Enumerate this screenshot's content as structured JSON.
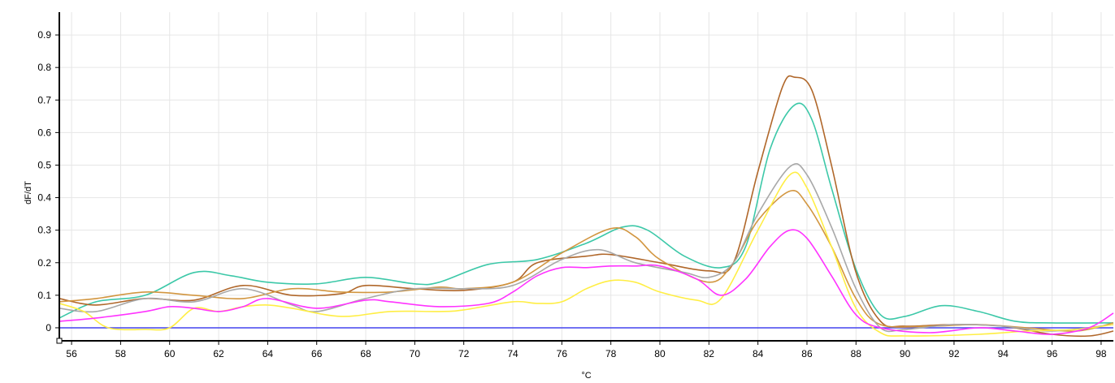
{
  "chart_data": {
    "type": "line",
    "xlabel": "°C",
    "ylabel": "dF/dT",
    "xlim": [
      55.5,
      98.5
    ],
    "ylim": [
      -0.04,
      0.97
    ],
    "xticks": [
      56,
      58,
      60,
      62,
      64,
      66,
      68,
      70,
      72,
      74,
      76,
      78,
      80,
      82,
      84,
      86,
      88,
      90,
      92,
      94,
      96,
      98
    ],
    "yticks": [
      0,
      0.1,
      0.2,
      0.3,
      0.4,
      0.5,
      0.6,
      0.7,
      0.8,
      0.9
    ],
    "grid": true,
    "baseline": {
      "value": 0,
      "color": "#4444ee"
    },
    "series": [
      {
        "color": "#3cc8a8",
        "points": [
          [
            55.5,
            0.03
          ],
          [
            57,
            0.08
          ],
          [
            59,
            0.1
          ],
          [
            61,
            0.17
          ],
          [
            62.5,
            0.16
          ],
          [
            64,
            0.14
          ],
          [
            66,
            0.135
          ],
          [
            68,
            0.155
          ],
          [
            70,
            0.135
          ],
          [
            71,
            0.14
          ],
          [
            73,
            0.195
          ],
          [
            75,
            0.21
          ],
          [
            77,
            0.26
          ],
          [
            78.5,
            0.31
          ],
          [
            79.5,
            0.3
          ],
          [
            81,
            0.22
          ],
          [
            82.5,
            0.185
          ],
          [
            83.5,
            0.25
          ],
          [
            84.5,
            0.55
          ],
          [
            85.5,
            0.685
          ],
          [
            86.2,
            0.64
          ],
          [
            87,
            0.43
          ],
          [
            88,
            0.18
          ],
          [
            89,
            0.04
          ],
          [
            90,
            0.035
          ],
          [
            91.5,
            0.068
          ],
          [
            93,
            0.05
          ],
          [
            94.5,
            0.02
          ],
          [
            96,
            0.015
          ],
          [
            98.5,
            0.015
          ]
        ]
      },
      {
        "color": "#b0672a",
        "points": [
          [
            55.5,
            0.09
          ],
          [
            57,
            0.07
          ],
          [
            59,
            0.09
          ],
          [
            61,
            0.085
          ],
          [
            63,
            0.13
          ],
          [
            65,
            0.1
          ],
          [
            67,
            0.105
          ],
          [
            68,
            0.13
          ],
          [
            70,
            0.12
          ],
          [
            72,
            0.115
          ],
          [
            74,
            0.14
          ],
          [
            75,
            0.2
          ],
          [
            77,
            0.22
          ],
          [
            78,
            0.225
          ],
          [
            80,
            0.2
          ],
          [
            82,
            0.175
          ],
          [
            83,
            0.2
          ],
          [
            84,
            0.48
          ],
          [
            85,
            0.74
          ],
          [
            85.5,
            0.77
          ],
          [
            86.2,
            0.73
          ],
          [
            87,
            0.5
          ],
          [
            88,
            0.17
          ],
          [
            89,
            0.02
          ],
          [
            90,
            0.005
          ],
          [
            92,
            0.01
          ],
          [
            94,
            0.005
          ],
          [
            96,
            -0.02
          ],
          [
            97.5,
            -0.025
          ],
          [
            98.5,
            -0.01
          ]
        ]
      },
      {
        "color": "#d29640",
        "points": [
          [
            55.5,
            0.08
          ],
          [
            57,
            0.09
          ],
          [
            59,
            0.11
          ],
          [
            61,
            0.1
          ],
          [
            63,
            0.09
          ],
          [
            65,
            0.12
          ],
          [
            67,
            0.11
          ],
          [
            69,
            0.11
          ],
          [
            71,
            0.125
          ],
          [
            72,
            0.12
          ],
          [
            74,
            0.14
          ],
          [
            76,
            0.23
          ],
          [
            78,
            0.305
          ],
          [
            79,
            0.28
          ],
          [
            80,
            0.21
          ],
          [
            82,
            0.14
          ],
          [
            83,
            0.2
          ],
          [
            84,
            0.33
          ],
          [
            85.3,
            0.42
          ],
          [
            86,
            0.38
          ],
          [
            87,
            0.25
          ],
          [
            88,
            0.09
          ],
          [
            89,
            0.01
          ],
          [
            91,
            0.005
          ],
          [
            93,
            0.01
          ],
          [
            95,
            0.0
          ],
          [
            97,
            -0.01
          ],
          [
            98.5,
            0.015
          ]
        ]
      },
      {
        "color": "#a8a8a8",
        "points": [
          [
            55.5,
            0.06
          ],
          [
            57,
            0.05
          ],
          [
            59,
            0.09
          ],
          [
            61,
            0.08
          ],
          [
            63,
            0.12
          ],
          [
            65,
            0.07
          ],
          [
            66,
            0.05
          ],
          [
            68,
            0.09
          ],
          [
            70,
            0.12
          ],
          [
            72,
            0.12
          ],
          [
            74,
            0.13
          ],
          [
            76,
            0.21
          ],
          [
            77.5,
            0.24
          ],
          [
            79,
            0.2
          ],
          [
            81,
            0.17
          ],
          [
            82,
            0.155
          ],
          [
            83,
            0.2
          ],
          [
            84,
            0.35
          ],
          [
            85.3,
            0.495
          ],
          [
            86,
            0.47
          ],
          [
            87,
            0.31
          ],
          [
            88,
            0.12
          ],
          [
            89,
            0.0
          ],
          [
            90,
            -0.005
          ],
          [
            92,
            0.01
          ],
          [
            94,
            0.005
          ],
          [
            96,
            -0.01
          ],
          [
            98.5,
            0.01
          ]
        ]
      },
      {
        "color": "#ffee44",
        "points": [
          [
            55.5,
            0.075
          ],
          [
            56.5,
            0.05
          ],
          [
            57.5,
            0.0
          ],
          [
            59,
            -0.005
          ],
          [
            60,
            0.0
          ],
          [
            61,
            0.06
          ],
          [
            62,
            0.05
          ],
          [
            63,
            0.065
          ],
          [
            64,
            0.07
          ],
          [
            65,
            0.06
          ],
          [
            67,
            0.035
          ],
          [
            69,
            0.05
          ],
          [
            71,
            0.05
          ],
          [
            72,
            0.055
          ],
          [
            74,
            0.08
          ],
          [
            75,
            0.075
          ],
          [
            76,
            0.08
          ],
          [
            77,
            0.12
          ],
          [
            78,
            0.145
          ],
          [
            79,
            0.14
          ],
          [
            80,
            0.11
          ],
          [
            81.5,
            0.085
          ],
          [
            82.5,
            0.09
          ],
          [
            84,
            0.3
          ],
          [
            85.3,
            0.47
          ],
          [
            86,
            0.43
          ],
          [
            87,
            0.25
          ],
          [
            88,
            0.06
          ],
          [
            89,
            -0.015
          ],
          [
            90,
            -0.025
          ],
          [
            93,
            -0.02
          ],
          [
            95,
            -0.01
          ],
          [
            97,
            -0.005
          ],
          [
            98.5,
            0.01
          ]
        ]
      },
      {
        "color": "#ff33ff",
        "points": [
          [
            55.5,
            0.02
          ],
          [
            57,
            0.03
          ],
          [
            59,
            0.05
          ],
          [
            60,
            0.065
          ],
          [
            61,
            0.06
          ],
          [
            62,
            0.05
          ],
          [
            63,
            0.065
          ],
          [
            64,
            0.09
          ],
          [
            66,
            0.06
          ],
          [
            68,
            0.085
          ],
          [
            69,
            0.08
          ],
          [
            71,
            0.065
          ],
          [
            73,
            0.075
          ],
          [
            74,
            0.11
          ],
          [
            75,
            0.16
          ],
          [
            76,
            0.185
          ],
          [
            77,
            0.185
          ],
          [
            78,
            0.19
          ],
          [
            79,
            0.19
          ],
          [
            80,
            0.19
          ],
          [
            81.5,
            0.15
          ],
          [
            82.5,
            0.1
          ],
          [
            83.5,
            0.15
          ],
          [
            84.5,
            0.25
          ],
          [
            85.3,
            0.3
          ],
          [
            86,
            0.275
          ],
          [
            87,
            0.16
          ],
          [
            88,
            0.04
          ],
          [
            89,
            0.0
          ],
          [
            91,
            -0.015
          ],
          [
            93,
            0.0
          ],
          [
            94.5,
            -0.01
          ],
          [
            96,
            -0.02
          ],
          [
            97.5,
            0.0
          ],
          [
            98.5,
            0.045
          ]
        ]
      }
    ]
  }
}
